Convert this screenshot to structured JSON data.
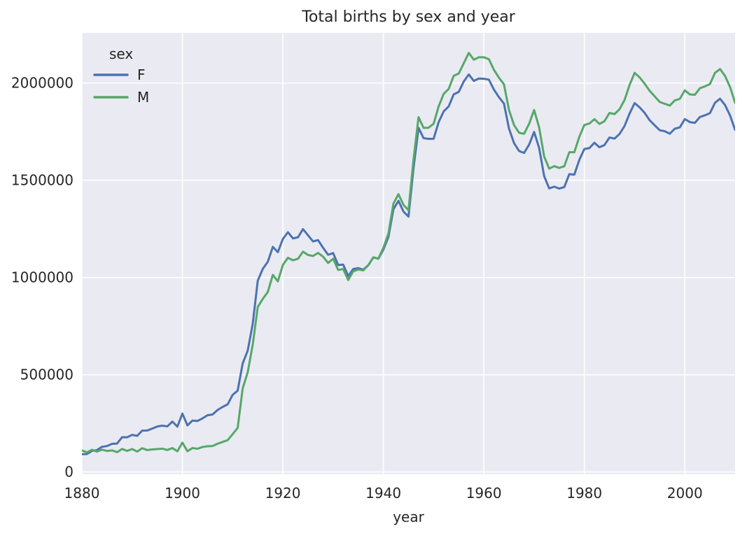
{
  "figure": {
    "background": "#ffffff",
    "plot_background": "#eaeaf2",
    "grid_color": "#ffffff",
    "text_color": "#262626"
  },
  "chart_data": {
    "type": "line",
    "title": "Total births by sex and year",
    "xlabel": "year",
    "ylabel": "",
    "legend_title": "sex",
    "legend_position": "upper left",
    "grid": true,
    "xlim": [
      1880,
      2010
    ],
    "ylim": [
      -12000,
      2258000
    ],
    "xticks": [
      1880,
      1900,
      1920,
      1940,
      1960,
      1980,
      2000
    ],
    "yticks": [
      0,
      500000,
      1000000,
      1500000,
      2000000
    ],
    "x": [
      1880,
      1881,
      1882,
      1883,
      1884,
      1885,
      1886,
      1887,
      1888,
      1889,
      1890,
      1891,
      1892,
      1893,
      1894,
      1895,
      1896,
      1897,
      1898,
      1899,
      1900,
      1901,
      1902,
      1903,
      1904,
      1905,
      1906,
      1907,
      1908,
      1909,
      1910,
      1911,
      1912,
      1913,
      1914,
      1915,
      1916,
      1917,
      1918,
      1919,
      1920,
      1921,
      1922,
      1923,
      1924,
      1925,
      1926,
      1927,
      1928,
      1929,
      1930,
      1931,
      1932,
      1933,
      1934,
      1935,
      1936,
      1937,
      1938,
      1939,
      1940,
      1941,
      1942,
      1943,
      1944,
      1945,
      1946,
      1947,
      1948,
      1949,
      1950,
      1951,
      1952,
      1953,
      1954,
      1955,
      1956,
      1957,
      1958,
      1959,
      1960,
      1961,
      1962,
      1963,
      1964,
      1965,
      1966,
      1967,
      1968,
      1969,
      1970,
      1971,
      1972,
      1973,
      1974,
      1975,
      1976,
      1977,
      1978,
      1979,
      1980,
      1981,
      1982,
      1983,
      1984,
      1985,
      1986,
      1987,
      1988,
      1989,
      1990,
      1991,
      1992,
      1993,
      1994,
      1995,
      1996,
      1997,
      1998,
      1999,
      2000,
      2001,
      2002,
      2003,
      2004,
      2005,
      2006,
      2007,
      2008,
      2009,
      2010
    ],
    "series": [
      {
        "name": "F",
        "color": "#4c72b0",
        "values": [
          90993,
          91955,
          107851,
          112322,
          129021,
          133056,
          144538,
          145983,
          178631,
          178369,
          190377,
          185486,
          212350,
          212908,
          222923,
          233632,
          237924,
          234202,
          258770,
          233023,
          299828,
          239348,
          264079,
          261976,
          275375,
          291641,
          295301,
          318558,
          334277,
          347191,
          396416,
          418180,
          557939,
          624327,
          761575,
          983824,
          1044249,
          1081280,
          1157585,
          1130149,
          1198214,
          1232845,
          1200796,
          1206720,
          1248821,
          1217223,
          1185390,
          1192216,
          1152764,
          1116691,
          1125521,
          1064110,
          1066173,
          1007523,
          1043464,
          1048146,
          1040136,
          1063189,
          1103345,
          1096206,
          1143462,
          1208193,
          1350702,
          1394303,
          1339117,
          1312914,
          1563059,
          1769556,
          1716436,
          1713164,
          1713283,
          1798950,
          1854320,
          1880146,
          1941832,
          1954539,
          2007856,
          2044160,
          2010982,
          2023161,
          2022093,
          2017316,
          1966565,
          1927217,
          1894530,
          1765387,
          1691313,
          1650584,
          1640458,
          1683163,
          1748276,
          1666368,
          1521133,
          1458243,
          1466939,
          1457317,
          1465113,
          1531354,
          1529044,
          1604957,
          1660884,
          1665289,
          1692901,
          1669957,
          1681164,
          1719899,
          1714335,
          1737961,
          1779410,
          1843135,
          1896962,
          1874979,
          1846346,
          1808422,
          1782500,
          1757364,
          1752170,
          1739169,
          1765152,
          1772139,
          1814601,
          1799049,
          1795206,
          1825359,
          1834145,
          1845379,
          1898463,
          1919408,
          1886765,
          1832925,
          1759010
        ]
      },
      {
        "name": "M",
        "color": "#55a868",
        "values": [
          110493,
          100748,
          113687,
          104632,
          114445,
          107802,
          110785,
          101414,
          118160,
          108013,
          117803,
          104629,
          122037,
          112317,
          115772,
          117398,
          119570,
          112758,
          122693,
          106212,
          150554,
          106471,
          122660,
          119234,
          128125,
          132062,
          133189,
          144980,
          154006,
          163233,
          194198,
          225936,
          429926,
          512482,
          654746,
          848603,
          890142,
          925512,
          1013537,
          980149,
          1064468,
          1101433,
          1088462,
          1096147,
          1132671,
          1115798,
          1110505,
          1126717,
          1107079,
          1074775,
          1096502,
          1038704,
          1043381,
          986782,
          1031959,
          1040899,
          1036418,
          1063762,
          1103255,
          1097188,
          1152144,
          1225743,
          1379917,
          1428451,
          1373124,
          1345837,
          1606757,
          1824664,
          1769365,
          1770291,
          1790549,
          1880023,
          1944277,
          1969777,
          2037374,
          2048708,
          2102016,
          2155125,
          2119891,
          2132643,
          2132717,
          2122502,
          2068095,
          2027364,
          1993270,
          1861378,
          1783964,
          1744527,
          1738928,
          1789983,
          1861363,
          1771922,
          1622114,
          1559938,
          1572459,
          1563385,
          1571900,
          1644178,
          1644206,
          1724015,
          1784390,
          1791767,
          1814245,
          1789651,
          1803782,
          1846098,
          1840274,
          1865170,
          1912846,
          1990068,
          2052281,
          2029144,
          1996512,
          1959879,
          1931307,
          1902832,
          1893378,
          1884122,
          1910733,
          1918809,
          1962406,
          1941251,
          1939815,
          1973434,
          1982936,
          1994841,
          2052377,
          2072139,
          2036289,
          1979303,
          1898382
        ]
      }
    ]
  }
}
